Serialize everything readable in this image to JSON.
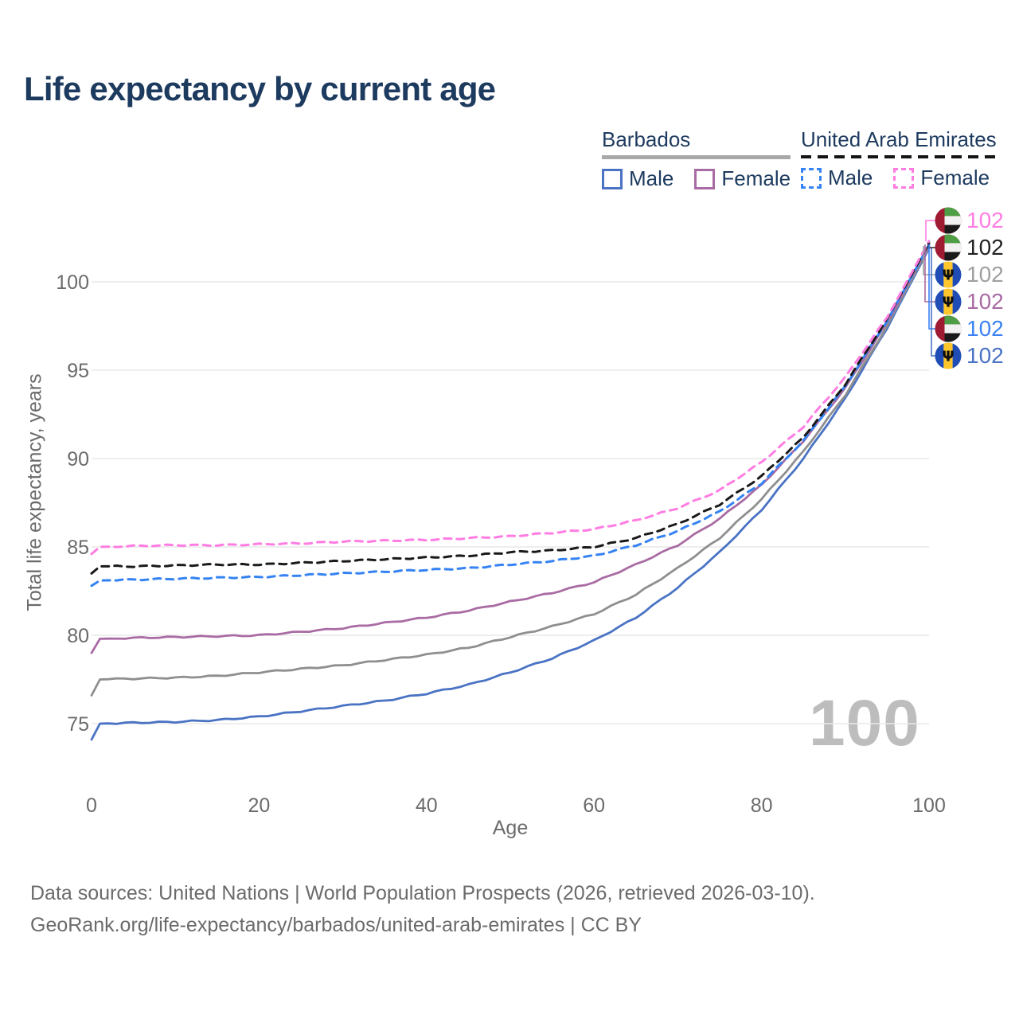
{
  "header": {
    "title": "Life expectancy by current age"
  },
  "legend": {
    "groups": [
      {
        "id": "barbados",
        "label": "Barbados",
        "line_style": "solid",
        "line_color": "#a8a8a8",
        "items": [
          {
            "label": "Male",
            "color": "#4a73c4",
            "dashed": false
          },
          {
            "label": "Female",
            "color": "#a96ba3",
            "dashed": false
          }
        ]
      },
      {
        "id": "uae",
        "label": "United Arab Emirates",
        "line_style": "dashed",
        "line_color": "#141414",
        "items": [
          {
            "label": "Male",
            "color": "#3583f2",
            "dashed": true
          },
          {
            "label": "Female",
            "color": "#ff7de2",
            "dashed": true
          }
        ]
      }
    ]
  },
  "chart_data": {
    "type": "line",
    "title": "Life expectancy by current age",
    "xlabel": "Age",
    "ylabel": "Total life expectancy, years",
    "xlim": [
      0,
      100
    ],
    "ylim": [
      73,
      103
    ],
    "xticks": [
      0,
      20,
      40,
      60,
      80,
      100
    ],
    "yticks": [
      75,
      80,
      85,
      90,
      95,
      100
    ],
    "grid": "horizontal-only",
    "legend_position": "top-right",
    "age_counter": "100",
    "x": [
      0,
      1,
      5,
      10,
      15,
      20,
      25,
      30,
      35,
      40,
      45,
      50,
      55,
      60,
      65,
      70,
      75,
      80,
      85,
      90,
      95,
      100
    ],
    "series": [
      {
        "name": "Barbados Male",
        "color": "#4a73c4",
        "dashed": false,
        "values": [
          74.1,
          75.0,
          75.05,
          75.1,
          75.2,
          75.4,
          75.7,
          76.0,
          76.3,
          76.7,
          77.2,
          77.9,
          78.7,
          79.7,
          81.0,
          82.7,
          84.7,
          87.1,
          90.0,
          93.4,
          97.4,
          101.9
        ]
      },
      {
        "name": "Barbados",
        "color": "#8f8f8f",
        "dashed": false,
        "values": [
          76.6,
          77.5,
          77.55,
          77.6,
          77.7,
          77.9,
          78.1,
          78.3,
          78.6,
          78.9,
          79.3,
          79.9,
          80.5,
          81.2,
          82.3,
          83.8,
          85.5,
          87.7,
          90.4,
          93.6,
          97.5,
          102.0
        ]
      },
      {
        "name": "Barbados Female",
        "color": "#a96ba3",
        "dashed": false,
        "values": [
          79.0,
          79.8,
          79.85,
          79.9,
          79.95,
          80.0,
          80.2,
          80.4,
          80.7,
          81.0,
          81.4,
          81.9,
          82.4,
          83.0,
          84.0,
          85.1,
          86.6,
          88.5,
          91.0,
          94.0,
          97.7,
          102.1
        ]
      },
      {
        "name": "United Arab Emirates Male",
        "color": "#3583f2",
        "dashed": true,
        "values": [
          82.8,
          83.1,
          83.15,
          83.2,
          83.25,
          83.3,
          83.4,
          83.5,
          83.6,
          83.7,
          83.8,
          84.0,
          84.2,
          84.5,
          85.1,
          85.9,
          87.0,
          88.6,
          91.0,
          94.1,
          97.8,
          102.1
        ]
      },
      {
        "name": "United Arab Emirates",
        "color": "#1a1a1a",
        "dashed": true,
        "values": [
          83.5,
          83.9,
          83.9,
          83.95,
          84.0,
          84.0,
          84.1,
          84.2,
          84.3,
          84.4,
          84.5,
          84.7,
          84.8,
          85.0,
          85.5,
          86.3,
          87.4,
          89.0,
          91.2,
          94.2,
          97.9,
          102.2
        ]
      },
      {
        "name": "United Arab Emirates Female",
        "color": "#ff7de2",
        "dashed": true,
        "values": [
          84.6,
          85.0,
          85.05,
          85.1,
          85.1,
          85.15,
          85.2,
          85.3,
          85.35,
          85.4,
          85.5,
          85.6,
          85.8,
          86.0,
          86.5,
          87.2,
          88.2,
          89.8,
          91.8,
          94.6,
          98.0,
          102.3
        ]
      }
    ],
    "end_labels": [
      {
        "series": "United Arab Emirates Female",
        "flag": "uae",
        "color": "#ff7de2",
        "value": "102"
      },
      {
        "series": "United Arab Emirates",
        "flag": "uae",
        "color": "#222222",
        "value": "102"
      },
      {
        "series": "Barbados",
        "flag": "barbados",
        "color": "#9f9f9f",
        "value": "102"
      },
      {
        "series": "Barbados Female",
        "flag": "barbados",
        "color": "#a96ba3",
        "value": "102"
      },
      {
        "series": "United Arab Emirates Male",
        "flag": "uae",
        "color": "#3b82f6",
        "value": "102"
      },
      {
        "series": "Barbados Male",
        "flag": "barbados",
        "color": "#4a73c4",
        "value": "102"
      }
    ]
  },
  "footer": {
    "line1": "Data sources: United Nations | World Population Prospects (2026, retrieved 2026-03-10).",
    "line2": "GeoRank.org/life-expectancy/barbados/united-arab-emirates | CC BY"
  }
}
